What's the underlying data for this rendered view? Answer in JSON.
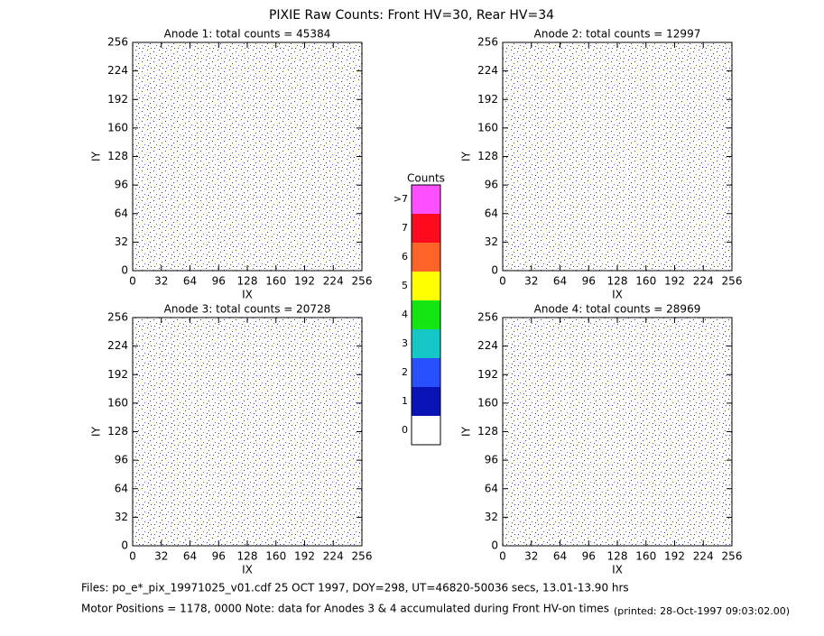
{
  "title": "PIXIE Raw Counts:  Front HV=30, Rear HV=34",
  "chart_data": [
    {
      "type": "heatmap",
      "title": "Anode 1: total counts = 45384",
      "x_label": "IX",
      "y_label": "IY",
      "xlim": [
        0,
        256
      ],
      "ylim": [
        0,
        256
      ],
      "xticks": [
        0,
        32,
        64,
        96,
        128,
        160,
        192,
        224,
        256
      ],
      "yticks": [
        0,
        32,
        64,
        96,
        128,
        160,
        192,
        224,
        256
      ]
    },
    {
      "type": "heatmap",
      "title": "Anode 2: total counts = 12997",
      "x_label": "IX",
      "y_label": "IY",
      "xlim": [
        0,
        256
      ],
      "ylim": [
        0,
        256
      ],
      "xticks": [
        0,
        32,
        64,
        96,
        128,
        160,
        192,
        224,
        256
      ],
      "yticks": [
        0,
        32,
        64,
        96,
        128,
        160,
        192,
        224,
        256
      ]
    },
    {
      "type": "heatmap",
      "title": "Anode 3: total counts = 20728",
      "x_label": "IX",
      "y_label": "IY",
      "xlim": [
        0,
        256
      ],
      "ylim": [
        0,
        256
      ],
      "xticks": [
        0,
        32,
        64,
        96,
        128,
        160,
        192,
        224,
        256
      ],
      "yticks": [
        0,
        32,
        64,
        96,
        128,
        160,
        192,
        224,
        256
      ]
    },
    {
      "type": "heatmap",
      "title": "Anode 4: total counts = 28969",
      "x_label": "IX",
      "y_label": "IY",
      "xlim": [
        0,
        256
      ],
      "ylim": [
        0,
        256
      ],
      "xticks": [
        0,
        32,
        64,
        96,
        128,
        160,
        192,
        224,
        256
      ],
      "yticks": [
        0,
        32,
        64,
        96,
        128,
        160,
        192,
        224,
        256
      ]
    }
  ],
  "colorbar": {
    "title": "Counts",
    "levels": [
      "0",
      "1",
      "2",
      "3",
      "4",
      "5",
      "6",
      "7",
      ">7"
    ],
    "colors": [
      "#ffffff",
      "#0a14b4",
      "#2850ff",
      "#14c8c8",
      "#14e614",
      "#ffff00",
      "#ff6428",
      "#ff0a1e",
      "#ff50ff"
    ]
  },
  "footer": {
    "files": "Files: po_e*_pix_19971025_v01.cdf    25 OCT 1997, DOY=298, UT=46820-50036 secs, 13.01-13.90 hrs",
    "motor": "Motor Positions = 1178, 0000    Note: data for Anodes 3 & 4 accumulated during Front HV-on times",
    "printed": "(printed: 28-Oct-1997 09:03:02.00)"
  }
}
